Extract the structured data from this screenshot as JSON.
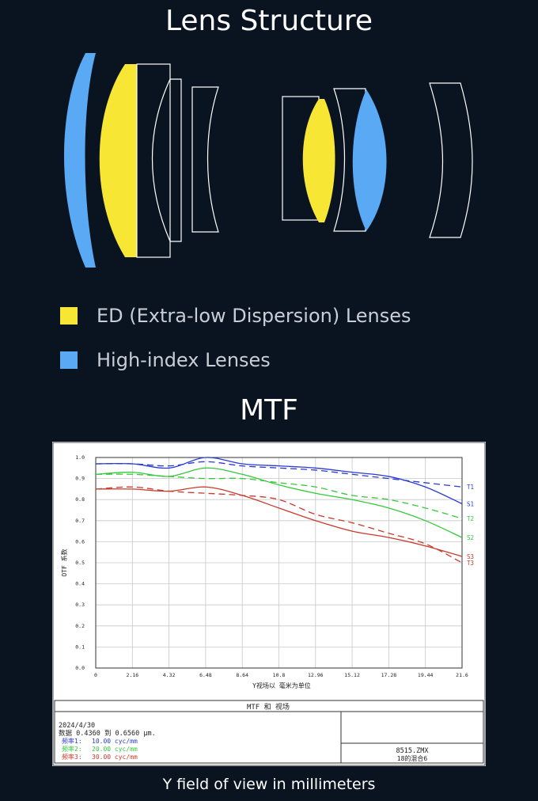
{
  "lens_title": "Lens Structure",
  "legend": {
    "items": [
      {
        "label": "ED (Extra-low Dispersion) Lenses",
        "color": "#f7e633"
      },
      {
        "label": "High-index Lenses",
        "color": "#5aa9f5"
      }
    ]
  },
  "mtf_title": "MTF",
  "caption": "Y field of view in millimeters",
  "chart_data": {
    "type": "line",
    "title": "MTF 和 视场",
    "xlabel": "Y视场以 毫米为单位",
    "ylabel": "OTF 系数",
    "xlim": [
      0,
      21.6
    ],
    "ylim": [
      0,
      1.0
    ],
    "grid": true,
    "x_ticks": [
      "0",
      "2.16",
      "4.32",
      "6.48",
      "8.64",
      "10.8",
      "12.96",
      "15.12",
      "17.28",
      "19.44",
      "21.6"
    ],
    "y_ticks": [
      "0.0",
      "0.1",
      "0.2",
      "0.3",
      "0.4",
      "0.5",
      "0.6",
      "0.7",
      "0.8",
      "0.9",
      "1.0"
    ],
    "series": [
      {
        "name": "T1",
        "color": "#2a3cd0",
        "dash": true,
        "x": [
          0,
          2.16,
          4.32,
          6.48,
          8.64,
          10.8,
          12.96,
          15.12,
          17.28,
          19.44,
          21.6
        ],
        "y": [
          0.97,
          0.97,
          0.96,
          0.98,
          0.96,
          0.95,
          0.94,
          0.92,
          0.9,
          0.88,
          0.86
        ]
      },
      {
        "name": "S1",
        "color": "#2a3cd0",
        "dash": false,
        "x": [
          0,
          2.16,
          4.32,
          6.48,
          8.64,
          10.8,
          12.96,
          15.12,
          17.28,
          19.44,
          21.6
        ],
        "y": [
          0.97,
          0.97,
          0.95,
          1.0,
          0.97,
          0.96,
          0.95,
          0.93,
          0.91,
          0.86,
          0.78
        ]
      },
      {
        "name": "T2",
        "color": "#34c93a",
        "dash": true,
        "x": [
          0,
          2.16,
          4.32,
          6.48,
          8.64,
          10.8,
          12.96,
          15.12,
          17.28,
          19.44,
          21.6
        ],
        "y": [
          0.92,
          0.92,
          0.91,
          0.9,
          0.9,
          0.88,
          0.86,
          0.82,
          0.8,
          0.76,
          0.71
        ]
      },
      {
        "name": "S2",
        "color": "#34c93a",
        "dash": false,
        "x": [
          0,
          2.16,
          4.32,
          6.48,
          8.64,
          10.8,
          12.96,
          15.12,
          17.28,
          19.44,
          21.6
        ],
        "y": [
          0.92,
          0.93,
          0.91,
          0.95,
          0.92,
          0.87,
          0.83,
          0.8,
          0.76,
          0.7,
          0.62
        ]
      },
      {
        "name": "T3",
        "color": "#c73a2c",
        "dash": true,
        "x": [
          0,
          2.16,
          4.32,
          6.48,
          8.64,
          10.8,
          12.96,
          15.12,
          17.28,
          19.44,
          21.6
        ],
        "y": [
          0.85,
          0.86,
          0.84,
          0.83,
          0.82,
          0.8,
          0.73,
          0.69,
          0.64,
          0.59,
          0.5
        ]
      },
      {
        "name": "S3",
        "color": "#c73a2c",
        "dash": false,
        "x": [
          0,
          2.16,
          4.32,
          6.48,
          8.64,
          10.8,
          12.96,
          15.12,
          17.28,
          19.44,
          21.6
        ],
        "y": [
          0.85,
          0.85,
          0.84,
          0.86,
          0.82,
          0.76,
          0.7,
          0.65,
          0.62,
          0.58,
          0.53
        ]
      }
    ]
  },
  "info": {
    "date": "2024/4/30",
    "data_line": "数据 0.4360 到 0.6560 μm.",
    "frequencies": [
      {
        "label": "频率1:",
        "value": "10.00 cyc/mm",
        "color": "#2a3cd0"
      },
      {
        "label": "频率2:",
        "value": "20.00 cyc/mm",
        "color": "#34c93a"
      },
      {
        "label": "频率3:",
        "value": "30.00 cyc/mm",
        "color": "#c73a2c"
      }
    ],
    "file_name": "8515.ZMX",
    "file_desc": "18的混合6"
  }
}
